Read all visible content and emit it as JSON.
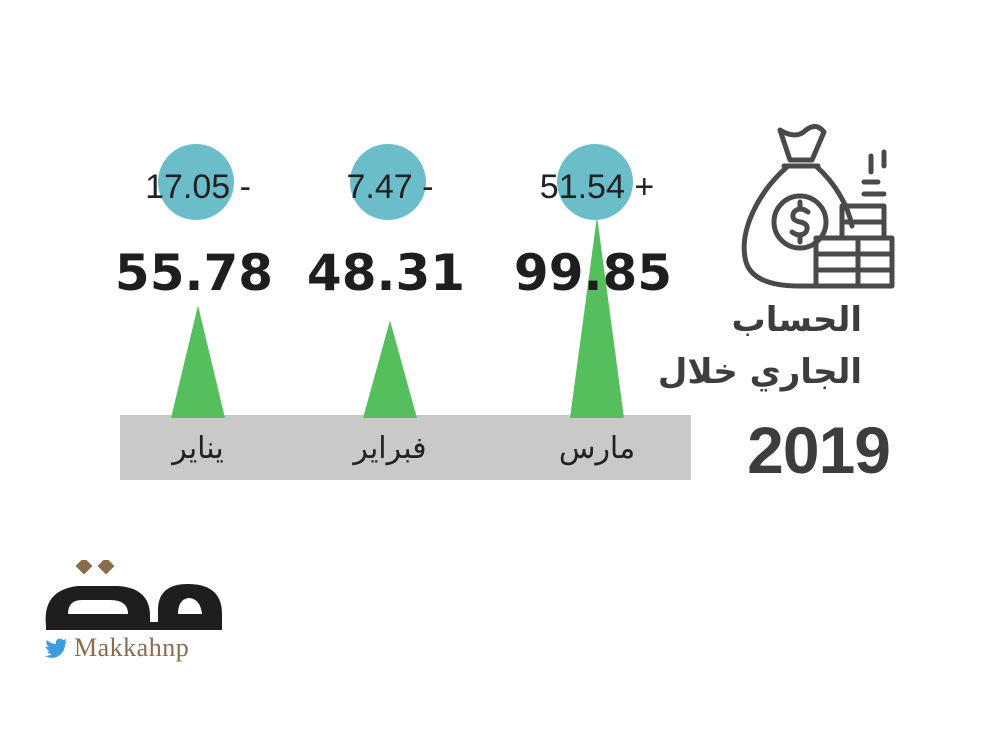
{
  "title": {
    "line1": "الحساب",
    "line2": "الجاري خلال",
    "year": "2019"
  },
  "colors": {
    "bar_green": "#56bf5d",
    "change_circle": "#6cbdca",
    "axis_band": "#c9c9c9",
    "value_text": "#1e1e1e",
    "icon_stroke": "#4a4a4a",
    "logo_brown": "#8b6b4a",
    "twitter_blue": "#3d9be0"
  },
  "chart_data": {
    "type": "bar",
    "categories": [
      "مارس",
      "فبراير",
      "يناير"
    ],
    "values": [
      99.85,
      48.31,
      55.78
    ],
    "changes": [
      "51.54 +",
      "7.47 -",
      "17.05 -"
    ],
    "change_values": [
      51.54,
      -7.47,
      -17.05
    ],
    "ylim": [
      0,
      100
    ]
  },
  "icons": {
    "main": "money-bag-coins-icon",
    "twitter": "twitter-bird-icon"
  },
  "logo": {
    "name": "مكة",
    "handle": "Makkahnp"
  }
}
